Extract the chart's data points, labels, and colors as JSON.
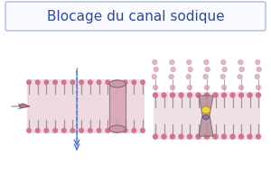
{
  "title": "Blocage du canal sodique",
  "title_color": "#2E4B8F",
  "title_fontsize": 11,
  "bg_color": "#FFFFFF",
  "box_edge_color": "#AABBDD",
  "box_bg_color": "#F8FAFF",
  "lipid_head_color": "#D4748C",
  "lipid_tail_color": "#888888",
  "channel_color": "#C4909A",
  "anesthetic_color": "#8B7BA0",
  "yellow_color": "#E8D44D",
  "arrow_color": "#4472C4",
  "annotation_color": "#888888"
}
